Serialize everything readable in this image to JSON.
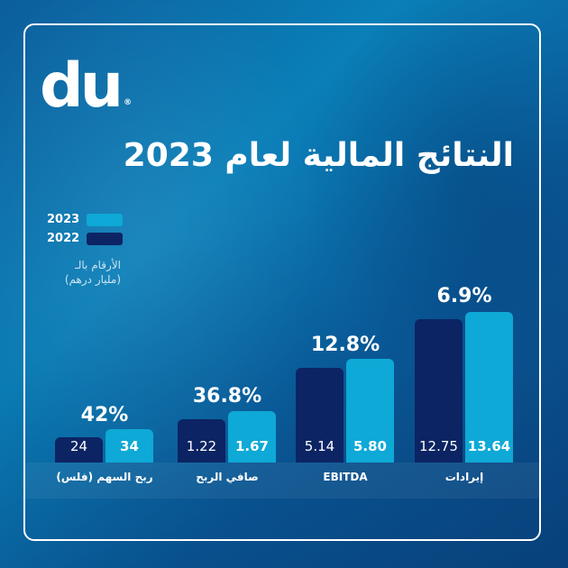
{
  "brand": {
    "logo_text": "du",
    "registered": "®"
  },
  "title": "النتائج المالية لعام 2023",
  "colors": {
    "y2023": "#0ea9d6",
    "y2022": "#0c2463",
    "background": "#0a6fae"
  },
  "chart_data": {
    "type": "bar",
    "unit_note": [
      "الأرقام بالـ",
      "(مليار درهم)"
    ],
    "legend": [
      "2023",
      "2022"
    ],
    "legend_placement": "top-left",
    "categories": [
      "ربح السهم (فلس)",
      "صافي الربح",
      "EBITDA",
      "إيرادات"
    ],
    "series": [
      {
        "name": "2022",
        "values": [
          "24",
          "1.22",
          "5.14",
          "12.75"
        ]
      },
      {
        "name": "2023",
        "values": [
          "34",
          "1.67",
          "5.80",
          "13.64"
        ]
      }
    ],
    "growth": [
      "42%",
      "36.8%",
      "12.8%",
      "6.9%"
    ]
  }
}
